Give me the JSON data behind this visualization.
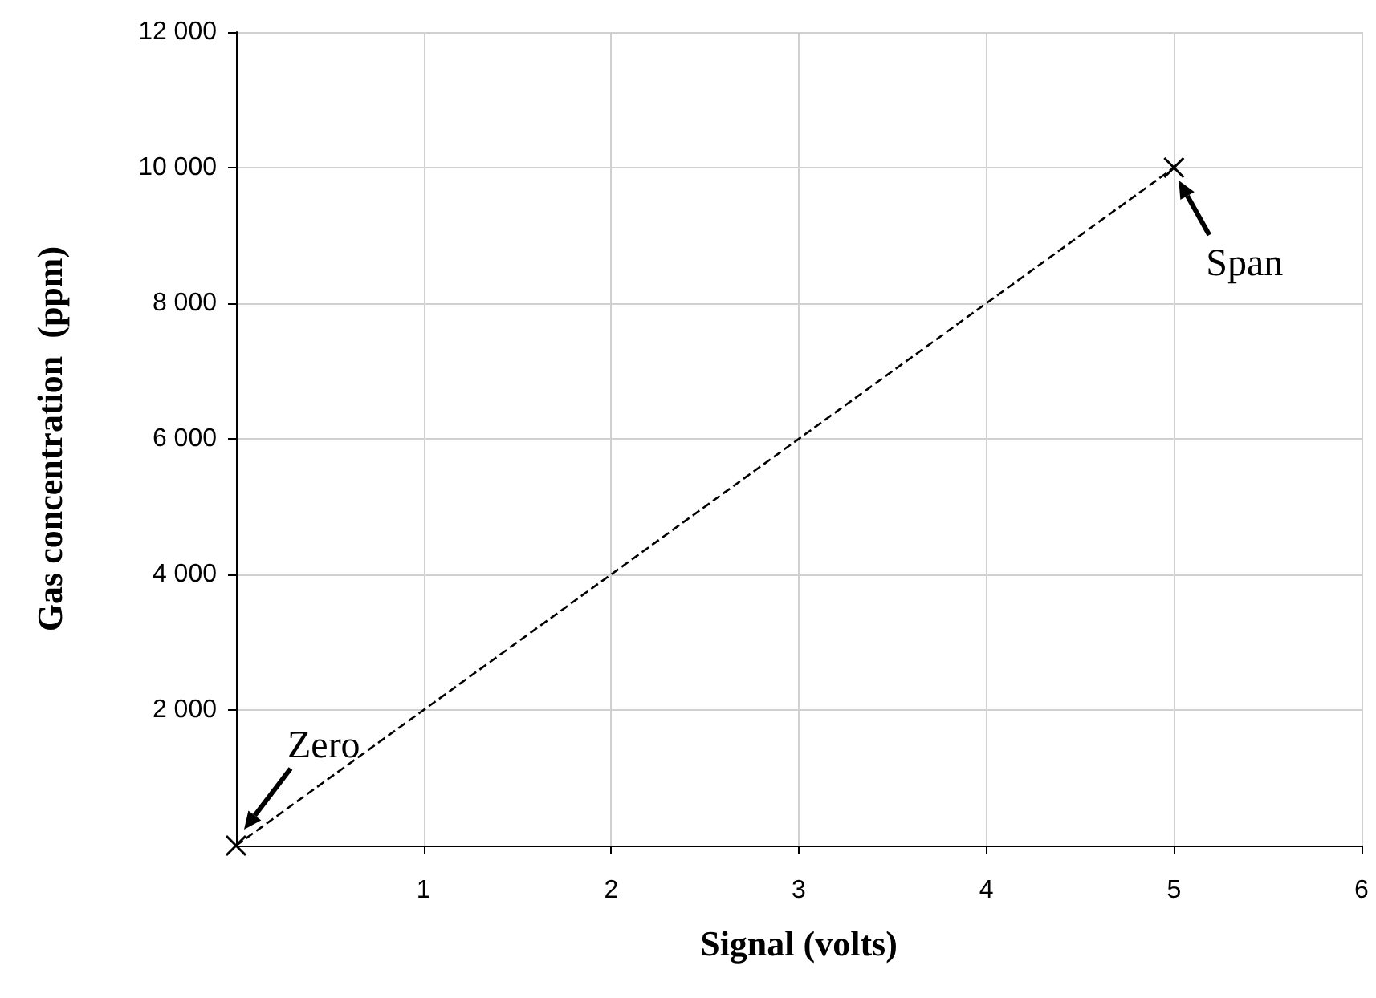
{
  "chart_data": {
    "type": "line",
    "xlabel": "Signal (volts)",
    "ylabel": "Gas concentration  (ppm)",
    "x": [
      0,
      5
    ],
    "series": [
      {
        "color": "#000000",
        "values": [
          0,
          10000
        ]
      }
    ],
    "xlim": [
      0,
      6
    ],
    "xticks": [
      1,
      2,
      3,
      4,
      5,
      6
    ],
    "ylim": [
      0,
      12000
    ],
    "yticks": [
      {
        "value": 2000,
        "label": "2 000"
      },
      {
        "value": 4000,
        "label": "4 000"
      },
      {
        "value": 6000,
        "label": "6 000"
      },
      {
        "value": 8000,
        "label": "8 000"
      },
      {
        "value": 10000,
        "label": "10 000"
      },
      {
        "value": 12000,
        "label": "12 000"
      }
    ],
    "grid": true,
    "marker": "cross",
    "line_style": "dashed",
    "annotations": [
      {
        "text": "Zero",
        "x": 0,
        "y": 0
      },
      {
        "text": "Span",
        "x": 5,
        "y": 10000
      }
    ]
  }
}
